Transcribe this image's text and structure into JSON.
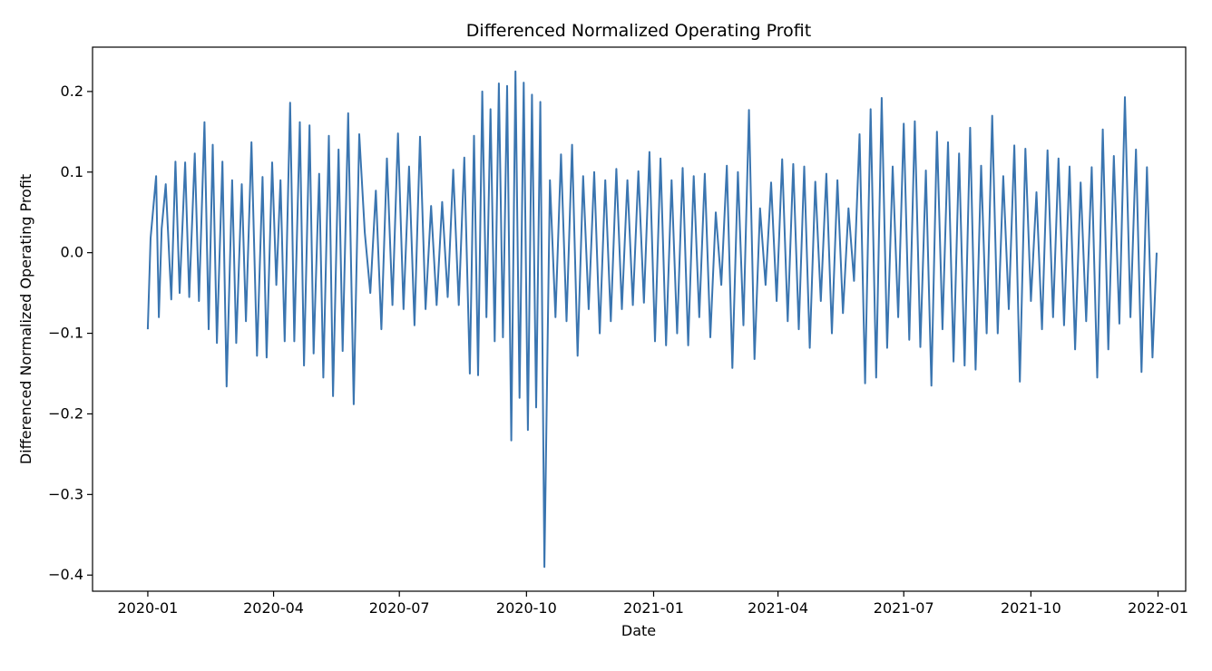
{
  "chart_data": {
    "type": "line",
    "title": "Differenced Normalized Operating Profit",
    "xlabel": "Date",
    "ylabel": "Differenced Normalized Operating Profit",
    "grid": false,
    "legend": "none",
    "xlim": [
      "2019-11-22",
      "2022-01-21"
    ],
    "ylim": [
      -0.42,
      0.255
    ],
    "x_ticks": [
      "2020-01",
      "2020-04",
      "2020-07",
      "2020-10",
      "2021-01",
      "2021-04",
      "2021-07",
      "2021-10",
      "2022-01"
    ],
    "y_ticks": [
      0.2,
      0.1,
      0.0,
      -0.1,
      -0.2,
      -0.3,
      -0.4
    ],
    "y_tick_labels": [
      "0.2",
      "0.1",
      "0.0",
      "−0.1",
      "−0.2",
      "−0.3",
      "−0.4"
    ],
    "series": [
      {
        "color": "#3a75b0",
        "x": [
          "2020-01-01",
          "2020-01-03",
          "2020-01-07",
          "2020-01-09",
          "2020-01-11",
          "2020-01-14",
          "2020-01-18",
          "2020-01-21",
          "2020-01-24",
          "2020-01-28",
          "2020-01-31",
          "2020-02-04",
          "2020-02-07",
          "2020-02-11",
          "2020-02-14",
          "2020-02-17",
          "2020-02-20",
          "2020-02-24",
          "2020-02-27",
          "2020-03-02",
          "2020-03-05",
          "2020-03-09",
          "2020-03-12",
          "2020-03-16",
          "2020-03-20",
          "2020-03-24",
          "2020-03-27",
          "2020-03-31",
          "2020-04-03",
          "2020-04-06",
          "2020-04-09",
          "2020-04-13",
          "2020-04-16",
          "2020-04-20",
          "2020-04-23",
          "2020-04-27",
          "2020-04-30",
          "2020-05-04",
          "2020-05-07",
          "2020-05-11",
          "2020-05-14",
          "2020-05-18",
          "2020-05-21",
          "2020-05-25",
          "2020-05-29",
          "2020-06-02",
          "2020-06-06",
          "2020-06-10",
          "2020-06-14",
          "2020-06-18",
          "2020-06-22",
          "2020-06-26",
          "2020-06-30",
          "2020-07-04",
          "2020-07-08",
          "2020-07-12",
          "2020-07-16",
          "2020-07-20",
          "2020-07-24",
          "2020-07-28",
          "2020-08-01",
          "2020-08-05",
          "2020-08-09",
          "2020-08-13",
          "2020-08-17",
          "2020-08-21",
          "2020-08-24",
          "2020-08-27",
          "2020-08-30",
          "2020-09-02",
          "2020-09-05",
          "2020-09-08",
          "2020-09-11",
          "2020-09-14",
          "2020-09-17",
          "2020-09-20",
          "2020-09-23",
          "2020-09-26",
          "2020-09-29",
          "2020-10-02",
          "2020-10-05",
          "2020-10-08",
          "2020-10-11",
          "2020-10-14",
          "2020-10-18",
          "2020-10-22",
          "2020-10-26",
          "2020-10-30",
          "2020-11-03",
          "2020-11-07",
          "2020-11-11",
          "2020-11-15",
          "2020-11-19",
          "2020-11-23",
          "2020-11-27",
          "2020-12-01",
          "2020-12-05",
          "2020-12-09",
          "2020-12-13",
          "2020-12-17",
          "2020-12-21",
          "2020-12-25",
          "2020-12-29",
          "2021-01-02",
          "2021-01-06",
          "2021-01-10",
          "2021-01-14",
          "2021-01-18",
          "2021-01-22",
          "2021-01-26",
          "2021-01-30",
          "2021-02-03",
          "2021-02-07",
          "2021-02-11",
          "2021-02-15",
          "2021-02-19",
          "2021-02-23",
          "2021-02-27",
          "2021-03-03",
          "2021-03-07",
          "2021-03-11",
          "2021-03-15",
          "2021-03-19",
          "2021-03-23",
          "2021-03-27",
          "2021-03-31",
          "2021-04-04",
          "2021-04-08",
          "2021-04-12",
          "2021-04-16",
          "2021-04-20",
          "2021-04-24",
          "2021-04-28",
          "2021-05-02",
          "2021-05-06",
          "2021-05-10",
          "2021-05-14",
          "2021-05-18",
          "2021-05-22",
          "2021-05-26",
          "2021-05-30",
          "2021-06-03",
          "2021-06-07",
          "2021-06-11",
          "2021-06-15",
          "2021-06-19",
          "2021-06-23",
          "2021-06-27",
          "2021-07-01",
          "2021-07-05",
          "2021-07-09",
          "2021-07-13",
          "2021-07-17",
          "2021-07-21",
          "2021-07-25",
          "2021-07-29",
          "2021-08-02",
          "2021-08-06",
          "2021-08-10",
          "2021-08-14",
          "2021-08-18",
          "2021-08-22",
          "2021-08-26",
          "2021-08-30",
          "2021-09-03",
          "2021-09-07",
          "2021-09-11",
          "2021-09-15",
          "2021-09-19",
          "2021-09-23",
          "2021-09-27",
          "2021-10-01",
          "2021-10-05",
          "2021-10-09",
          "2021-10-13",
          "2021-10-17",
          "2021-10-21",
          "2021-10-25",
          "2021-10-29",
          "2021-11-02",
          "2021-11-06",
          "2021-11-10",
          "2021-11-14",
          "2021-11-18",
          "2021-11-22",
          "2021-11-26",
          "2021-11-30",
          "2021-12-04",
          "2021-12-08",
          "2021-12-12",
          "2021-12-16",
          "2021-12-20",
          "2021-12-24",
          "2021-12-28",
          "2021-12-31"
        ],
        "y": [
          -0.095,
          0.018,
          0.095,
          -0.08,
          0.03,
          0.085,
          -0.058,
          0.113,
          -0.05,
          0.112,
          -0.055,
          0.123,
          -0.06,
          0.162,
          -0.095,
          0.134,
          -0.112,
          0.113,
          -0.166,
          0.09,
          -0.112,
          0.085,
          -0.085,
          0.137,
          -0.128,
          0.094,
          -0.13,
          0.112,
          -0.04,
          0.09,
          -0.11,
          0.186,
          -0.11,
          0.162,
          -0.14,
          0.158,
          -0.125,
          0.098,
          -0.155,
          0.145,
          -0.178,
          0.128,
          -0.122,
          0.173,
          -0.188,
          0.147,
          0.025,
          -0.05,
          0.077,
          -0.095,
          0.117,
          -0.065,
          0.148,
          -0.07,
          0.107,
          -0.09,
          0.144,
          -0.07,
          0.058,
          -0.065,
          0.063,
          -0.055,
          0.103,
          -0.065,
          0.118,
          -0.15,
          0.145,
          -0.152,
          0.2,
          -0.08,
          0.178,
          -0.11,
          0.21,
          -0.105,
          0.207,
          -0.233,
          0.225,
          -0.18,
          0.211,
          -0.22,
          0.196,
          -0.192,
          0.187,
          -0.39,
          0.09,
          -0.08,
          0.122,
          -0.085,
          0.134,
          -0.128,
          0.095,
          -0.07,
          0.1,
          -0.1,
          0.09,
          -0.085,
          0.104,
          -0.07,
          0.09,
          -0.065,
          0.101,
          -0.062,
          0.125,
          -0.11,
          0.117,
          -0.115,
          0.09,
          -0.1,
          0.105,
          -0.115,
          0.095,
          -0.08,
          0.098,
          -0.105,
          0.05,
          -0.04,
          0.108,
          -0.143,
          0.1,
          -0.09,
          0.177,
          -0.132,
          0.055,
          -0.04,
          0.087,
          -0.06,
          0.116,
          -0.085,
          0.11,
          -0.095,
          0.107,
          -0.118,
          0.088,
          -0.06,
          0.098,
          -0.1,
          0.09,
          -0.075,
          0.055,
          -0.035,
          0.147,
          -0.162,
          0.178,
          -0.155,
          0.192,
          -0.118,
          0.107,
          -0.08,
          0.16,
          -0.108,
          0.163,
          -0.117,
          0.102,
          -0.165,
          0.15,
          -0.095,
          0.137,
          -0.135,
          0.123,
          -0.14,
          0.155,
          -0.145,
          0.108,
          -0.1,
          0.17,
          -0.1,
          0.095,
          -0.07,
          0.133,
          -0.16,
          0.129,
          -0.06,
          0.075,
          -0.095,
          0.127,
          -0.08,
          0.117,
          -0.09,
          0.107,
          -0.12,
          0.087,
          -0.085,
          0.106,
          -0.155,
          0.153,
          -0.12,
          0.12,
          -0.088,
          0.193,
          -0.08,
          0.128,
          -0.148,
          0.106,
          -0.13,
          0.0
        ]
      }
    ]
  }
}
